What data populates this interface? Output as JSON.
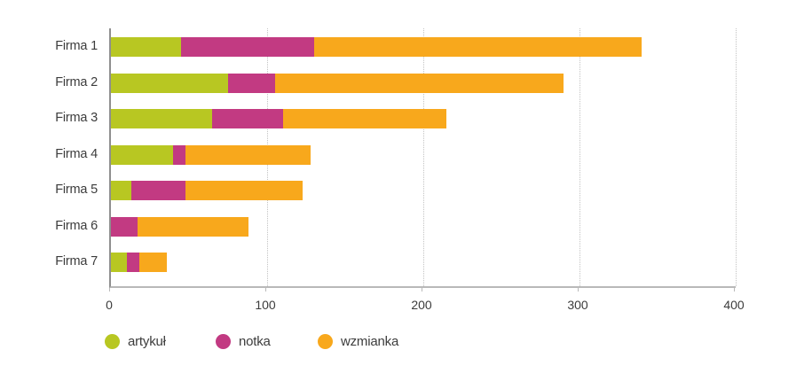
{
  "chart_data": {
    "type": "bar",
    "orientation": "horizontal",
    "stacked": true,
    "title": "",
    "xlabel": "",
    "ylabel": "",
    "categories": [
      "Firma 1",
      "Firma 2",
      "Firma 3",
      "Firma 4",
      "Firma 5",
      "Firma 6",
      "Firma 7"
    ],
    "series": [
      {
        "name": "artykuł",
        "color": "#b8c722",
        "values": [
          45,
          75,
          65,
          40,
          13,
          0,
          10
        ]
      },
      {
        "name": "notka",
        "color": "#c23a82",
        "values": [
          85,
          30,
          45,
          8,
          35,
          17,
          8
        ]
      },
      {
        "name": "wzmianka",
        "color": "#f8a81c",
        "values": [
          210,
          185,
          105,
          80,
          75,
          71,
          18
        ]
      }
    ],
    "totals": [
      340,
      290,
      215,
      128,
      123,
      88,
      36
    ],
    "xlim": [
      0,
      400
    ],
    "x_ticks": [
      0,
      100,
      200,
      300,
      400
    ],
    "grid": "vertical-dotted",
    "legend_position": "bottom",
    "axis_color": "#8f8f8f",
    "gridline_color": "#c3c3c3",
    "text_color": "#3c3c3c"
  }
}
